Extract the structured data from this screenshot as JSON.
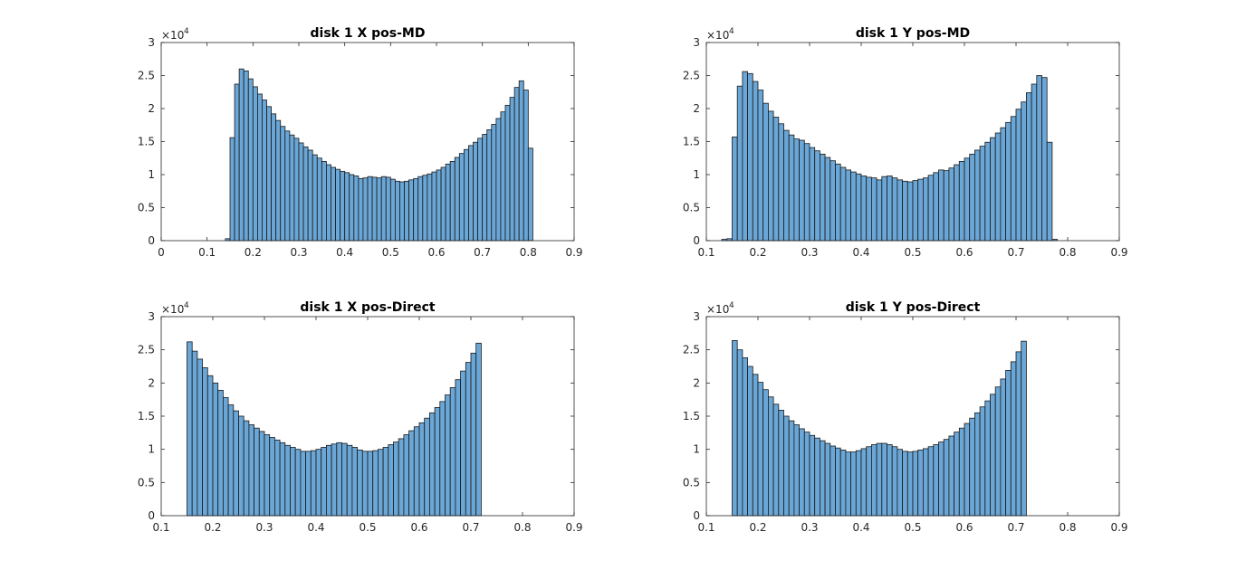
{
  "figure": {
    "background": "#ffffff",
    "bar_color": "#6aa6d6",
    "edge_color": "#1a1a1a"
  },
  "chart_data": [
    {
      "type": "bar",
      "title": "disk 1 X pos-MD",
      "xlabel": "",
      "ylabel": "",
      "xlim": [
        0,
        0.9
      ],
      "ylim": [
        0,
        30000
      ],
      "xticks": [
        "0",
        "0.1",
        "0.2",
        "0.3",
        "0.4",
        "0.5",
        "0.6",
        "0.7",
        "0.8",
        "0.9"
      ],
      "yticks": [
        "0",
        "0.5",
        "1",
        "1.5",
        "2",
        "2.5",
        "3"
      ],
      "exponent_label": "×10",
      "exponent_power": "4",
      "bin_start": 0.14,
      "bin_width": 0.01,
      "values": [
        300,
        15600,
        23700,
        26000,
        25700,
        24500,
        23300,
        22200,
        21300,
        20300,
        19200,
        18200,
        17300,
        16600,
        16000,
        15500,
        14800,
        14200,
        13700,
        13000,
        12500,
        12000,
        11500,
        11100,
        10800,
        10500,
        10300,
        10000,
        9800,
        9400,
        9500,
        9700,
        9600,
        9500,
        9700,
        9600,
        9300,
        9000,
        8900,
        9000,
        9200,
        9400,
        9700,
        9900,
        10100,
        10400,
        10700,
        11100,
        11600,
        12000,
        12600,
        13200,
        13800,
        14400,
        14900,
        15500,
        16100,
        16800,
        17600,
        18500,
        19500,
        20500,
        21700,
        23200,
        24200,
        22800,
        14000
      ]
    },
    {
      "type": "bar",
      "title": "disk 1 Y pos-MD",
      "xlabel": "",
      "ylabel": "",
      "xlim": [
        0.1,
        0.9
      ],
      "ylim": [
        0,
        30000
      ],
      "xticks": [
        "0.1",
        "0.2",
        "0.3",
        "0.4",
        "0.5",
        "0.6",
        "0.7",
        "0.8",
        "0.9"
      ],
      "yticks": [
        "0",
        "0.5",
        "1",
        "1.5",
        "2",
        "2.5",
        "3"
      ],
      "exponent_label": "×10",
      "exponent_power": "4",
      "bin_start": 0.13,
      "bin_width": 0.01,
      "values": [
        200,
        300,
        15700,
        23400,
        25600,
        25300,
        24100,
        22800,
        20800,
        19600,
        18700,
        17700,
        16700,
        16000,
        15400,
        15200,
        14700,
        14100,
        13600,
        13100,
        12600,
        12100,
        11600,
        11100,
        10700,
        10400,
        10100,
        9800,
        9600,
        9500,
        9200,
        9700,
        9800,
        9500,
        9200,
        9000,
        8900,
        9100,
        9300,
        9500,
        9900,
        10300,
        10700,
        10600,
        11000,
        11500,
        12000,
        12500,
        13100,
        13700,
        14300,
        14900,
        15600,
        16300,
        17100,
        17900,
        18800,
        19900,
        21000,
        22400,
        23700,
        25000,
        24700,
        14900,
        200
      ]
    },
    {
      "type": "bar",
      "title": "disk 1 X pos-Direct",
      "xlabel": "",
      "ylabel": "",
      "xlim": [
        0.1,
        0.9
      ],
      "ylim": [
        0,
        30000
      ],
      "xticks": [
        "0.1",
        "0.2",
        "0.3",
        "0.4",
        "0.5",
        "0.6",
        "0.7",
        "0.8",
        "0.9"
      ],
      "yticks": [
        "0",
        "0.5",
        "1",
        "1.5",
        "2",
        "2.5",
        "3"
      ],
      "exponent_label": "×10",
      "exponent_power": "4",
      "bin_start": 0.15,
      "bin_width": 0.01,
      "values": [
        26200,
        24800,
        23600,
        22300,
        21100,
        20000,
        18900,
        17800,
        16700,
        15800,
        15000,
        14300,
        13700,
        13200,
        12700,
        12200,
        11800,
        11400,
        11000,
        10600,
        10300,
        10000,
        9700,
        9700,
        9800,
        10000,
        10300,
        10600,
        10800,
        11000,
        10900,
        10600,
        10300,
        9900,
        9700,
        9700,
        9800,
        10000,
        10300,
        10700,
        11100,
        11600,
        12200,
        12800,
        13400,
        14000,
        14700,
        15500,
        16300,
        17200,
        18200,
        19300,
        20500,
        21800,
        23100,
        24500,
        26000
      ]
    },
    {
      "type": "bar",
      "title": "disk 1 Y pos-Direct",
      "xlabel": "",
      "ylabel": "",
      "xlim": [
        0.1,
        0.9
      ],
      "ylim": [
        0,
        30000
      ],
      "xticks": [
        "0.1",
        "0.2",
        "0.3",
        "0.4",
        "0.5",
        "0.6",
        "0.7",
        "0.8",
        "0.9"
      ],
      "yticks": [
        "0",
        "0.5",
        "1",
        "1.5",
        "2",
        "2.5",
        "3"
      ],
      "exponent_label": "×10",
      "exponent_power": "4",
      "bin_start": 0.15,
      "bin_width": 0.01,
      "values": [
        26400,
        25000,
        23800,
        22500,
        21300,
        20100,
        19000,
        17900,
        16800,
        15900,
        15000,
        14300,
        13700,
        13100,
        12600,
        12100,
        11700,
        11300,
        10900,
        10500,
        10200,
        9900,
        9600,
        9600,
        9800,
        10100,
        10400,
        10700,
        10900,
        10900,
        10700,
        10400,
        10000,
        9700,
        9600,
        9700,
        9900,
        10100,
        10400,
        10700,
        11100,
        11500,
        12000,
        12600,
        13200,
        13900,
        14700,
        15500,
        16400,
        17300,
        18300,
        19400,
        20600,
        21900,
        23200,
        24700,
        26300
      ]
    }
  ]
}
